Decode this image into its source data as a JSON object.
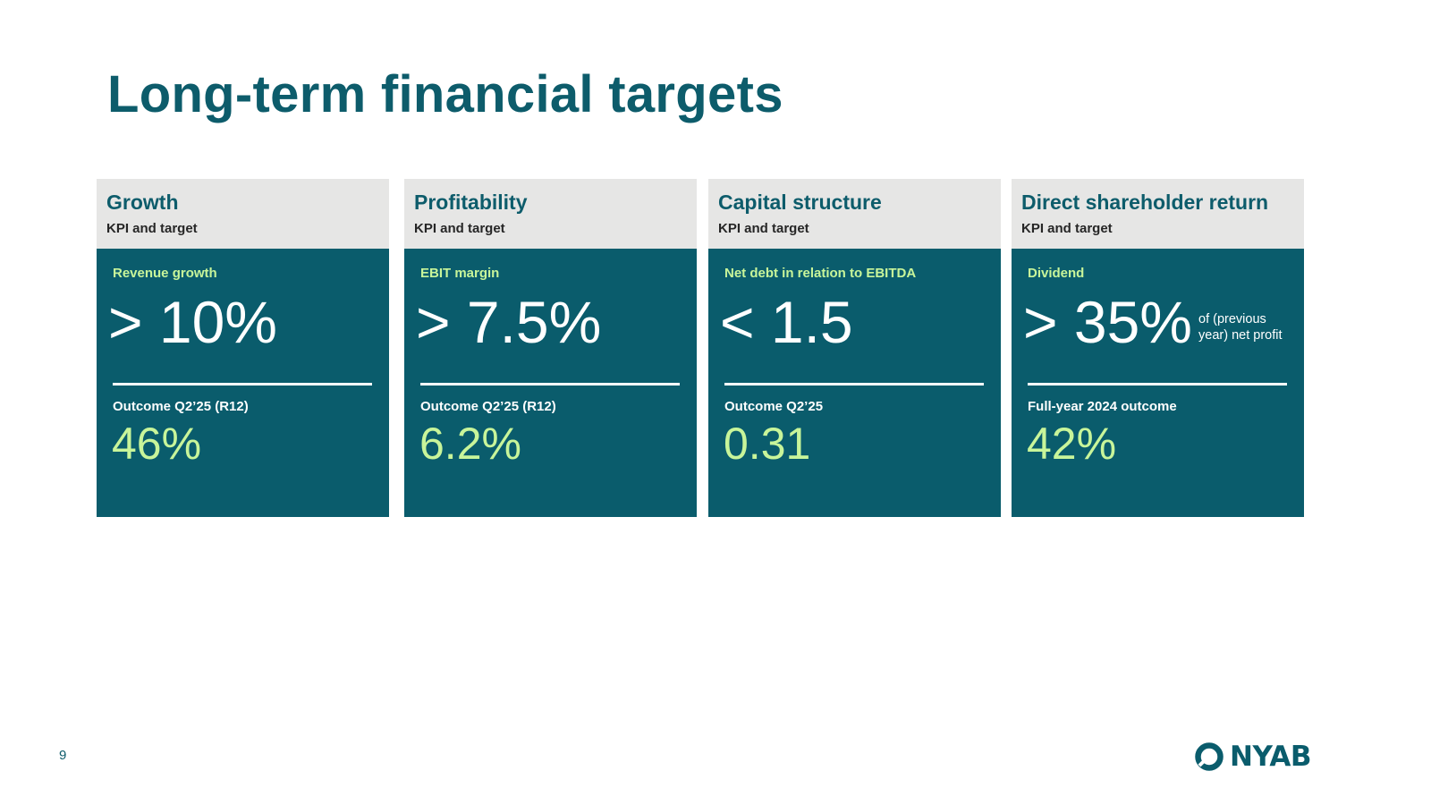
{
  "slide": {
    "title": "Long-term financial targets",
    "page_number": "9"
  },
  "logo": {
    "text": "NYAB",
    "icon": "ring-logo-icon"
  },
  "colors": {
    "brand_teal": "#0a5c6c",
    "accent_green": "#c8f59a",
    "header_gray": "#e6e6e5"
  },
  "cards": [
    {
      "heading": "Growth",
      "subheading": "KPI and target",
      "kpi_label": "Revenue growth",
      "target": "> 10%",
      "target_note": "",
      "outcome_label": "Outcome Q2’25 (R12)",
      "outcome_value": "46%"
    },
    {
      "heading": "Profitability",
      "subheading": "KPI and target",
      "kpi_label": "EBIT margin",
      "target": "> 7.5%",
      "target_note": "",
      "outcome_label": "Outcome Q2’25 (R12)",
      "outcome_value": "6.2%"
    },
    {
      "heading": "Capital structure",
      "subheading": "KPI and target",
      "kpi_label": "Net debt in relation to EBITDA",
      "target": "< 1.5",
      "target_note": "",
      "outcome_label": "Outcome Q2’25",
      "outcome_value": "0.31"
    },
    {
      "heading": "Direct shareholder return",
      "subheading": "KPI and target",
      "kpi_label": "Dividend",
      "target": "> 35%",
      "target_note": "of (previous year) net profit",
      "outcome_label": "Full-year 2024 outcome",
      "outcome_value": "42%"
    }
  ]
}
